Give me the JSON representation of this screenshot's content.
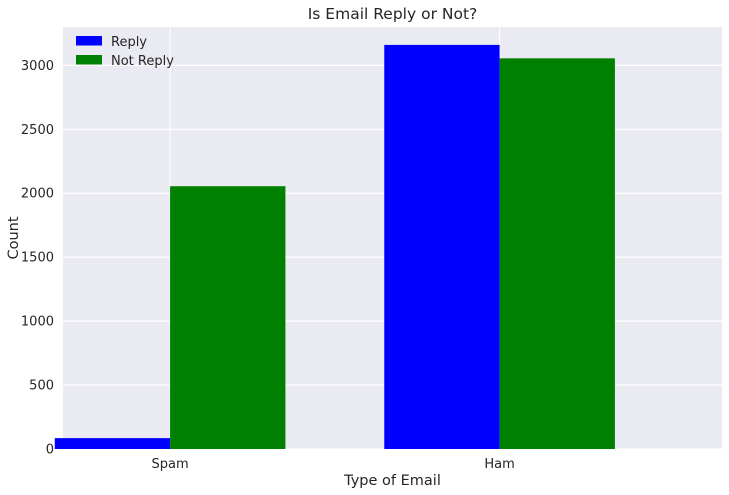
{
  "chart_data": {
    "type": "bar",
    "title": "Is Email Reply or Not?",
    "xlabel": "Type of Email",
    "ylabel": "Count",
    "categories": [
      "Spam",
      "Ham"
    ],
    "series": [
      {
        "name": "Reply",
        "values": [
          85,
          3160
        ],
        "color": "#0000ff"
      },
      {
        "name": "Not Reply",
        "values": [
          2055,
          3055
        ],
        "color": "#008000"
      }
    ],
    "ylim": [
      0,
      3300
    ],
    "yticks": [
      0,
      500,
      1000,
      1500,
      2000,
      2500,
      3000
    ],
    "grid": true,
    "legend_position": "top-left",
    "background_color": "#eaeaf2",
    "grid_color": "#ffffff"
  }
}
